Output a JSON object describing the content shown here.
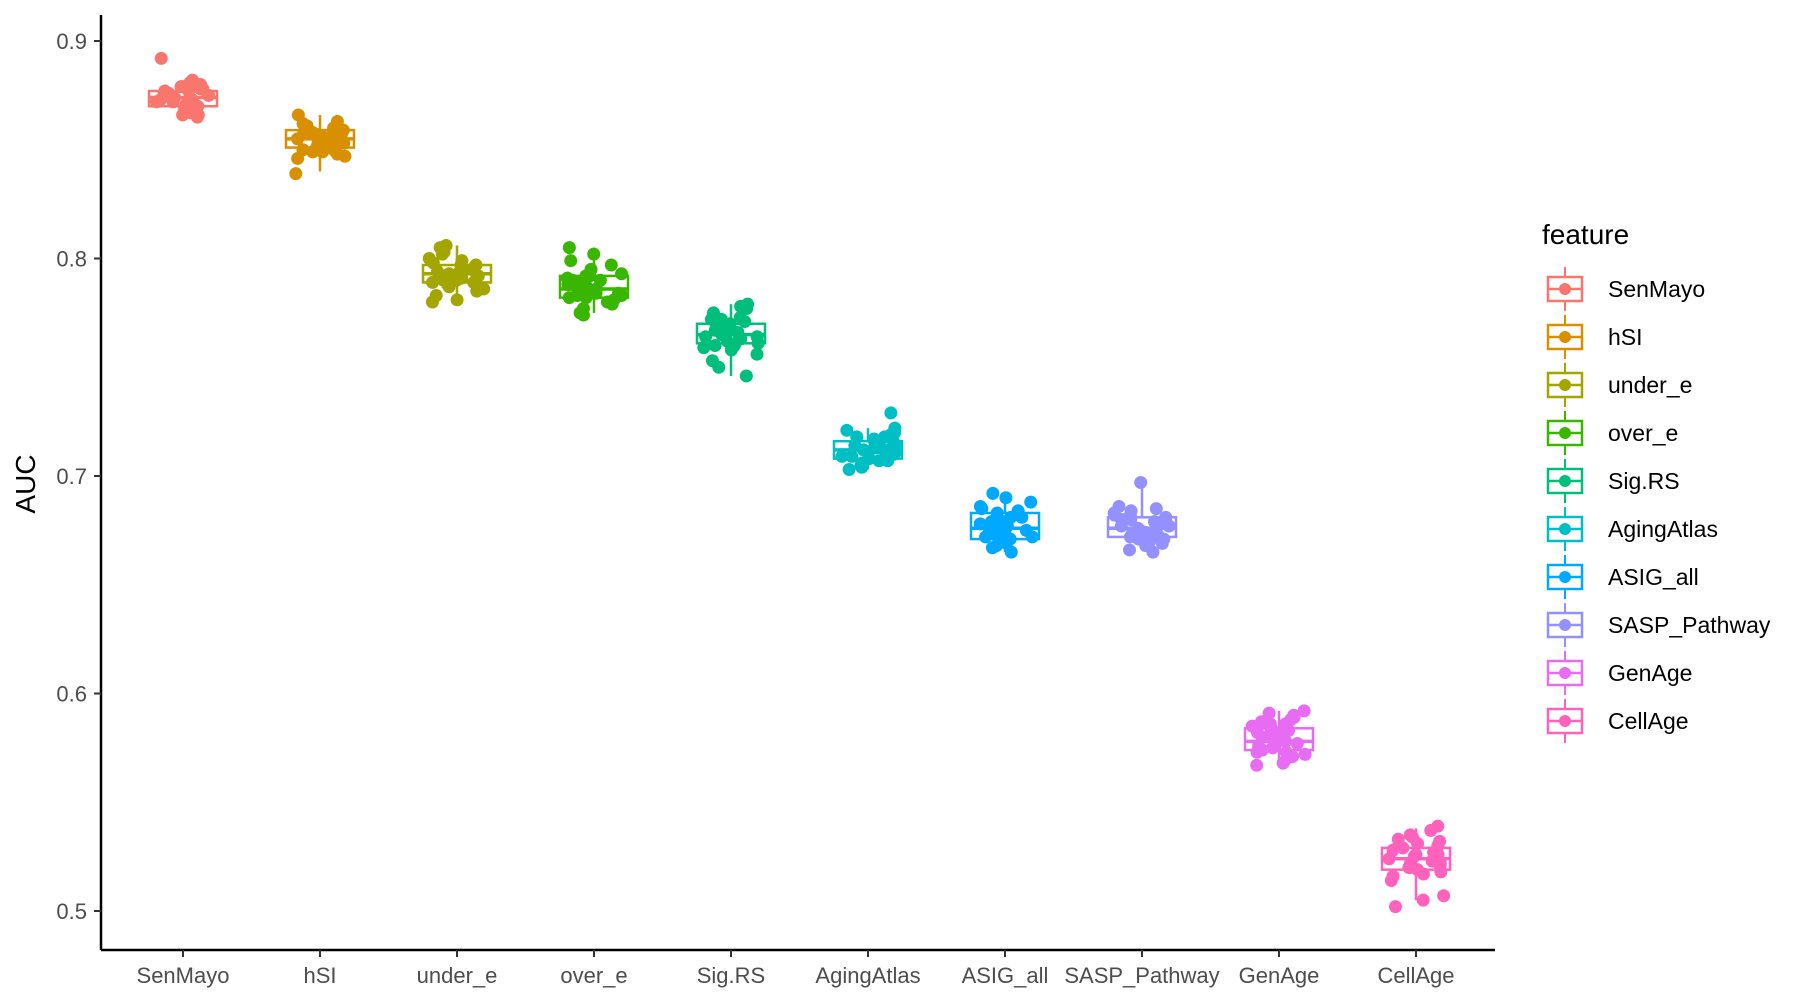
{
  "chart_data": {
    "type": "boxplot",
    "title": "",
    "xlabel": "",
    "ylabel": "AUC",
    "ylim": [
      0.485,
      0.912
    ],
    "yticks": [
      0.5,
      0.6,
      0.7,
      0.8,
      0.9
    ],
    "ytick_labels": [
      "0.5",
      "0.6",
      "0.7",
      "0.8",
      "0.9"
    ],
    "grid": false,
    "legend": {
      "title": "feature",
      "position": "right"
    },
    "categories": [
      "SenMayo",
      "hSI",
      "under_e",
      "over_e",
      "Sig.RS",
      "AgingAtlas",
      "ASIG_all",
      "SASP_Pathway",
      "GenAge",
      "CellAge"
    ],
    "series": [
      {
        "name": "SenMayo",
        "color": "#F8766D",
        "box": {
          "whisker_low": 0.866,
          "q1": 0.87,
          "median": 0.874,
          "q3": 0.877,
          "whisker_high": 0.882
        },
        "points": [
          0.892,
          0.882,
          0.881,
          0.88,
          0.879,
          0.878,
          0.877,
          0.876,
          0.876,
          0.875,
          0.874,
          0.874,
          0.873,
          0.872,
          0.871,
          0.87,
          0.869,
          0.868,
          0.867,
          0.866,
          0.866,
          0.865,
          0.878,
          0.875,
          0.873,
          0.871,
          0.869,
          0.877,
          0.872,
          0.87
        ]
      },
      {
        "name": "hSI",
        "color": "#D89000",
        "box": {
          "whisker_low": 0.84,
          "q1": 0.851,
          "median": 0.855,
          "q3": 0.859,
          "whisker_high": 0.866
        },
        "points": [
          0.866,
          0.863,
          0.862,
          0.861,
          0.86,
          0.859,
          0.858,
          0.857,
          0.856,
          0.855,
          0.855,
          0.854,
          0.853,
          0.852,
          0.851,
          0.85,
          0.849,
          0.848,
          0.847,
          0.846,
          0.839,
          0.858,
          0.856,
          0.854,
          0.852,
          0.85,
          0.857,
          0.853,
          0.851,
          0.849
        ]
      },
      {
        "name": "under_e",
        "color": "#A3A500",
        "box": {
          "whisker_low": 0.78,
          "q1": 0.789,
          "median": 0.793,
          "q3": 0.797,
          "whisker_high": 0.806
        },
        "points": [
          0.806,
          0.805,
          0.803,
          0.802,
          0.8,
          0.799,
          0.798,
          0.797,
          0.796,
          0.795,
          0.794,
          0.793,
          0.792,
          0.791,
          0.79,
          0.789,
          0.788,
          0.787,
          0.786,
          0.785,
          0.783,
          0.781,
          0.78,
          0.797,
          0.794,
          0.791,
          0.789,
          0.795,
          0.792,
          0.79
        ]
      },
      {
        "name": "over_e",
        "color": "#39B600",
        "box": {
          "whisker_low": 0.775,
          "q1": 0.782,
          "median": 0.786,
          "q3": 0.792,
          "whisker_high": 0.805
        },
        "points": [
          0.805,
          0.802,
          0.799,
          0.797,
          0.795,
          0.793,
          0.792,
          0.791,
          0.79,
          0.789,
          0.788,
          0.787,
          0.786,
          0.785,
          0.784,
          0.783,
          0.782,
          0.781,
          0.78,
          0.779,
          0.777,
          0.775,
          0.774,
          0.79,
          0.787,
          0.784,
          0.782,
          0.792,
          0.785,
          0.783
        ]
      },
      {
        "name": "Sig.RS",
        "color": "#00BF7D",
        "box": {
          "whisker_low": 0.746,
          "q1": 0.761,
          "median": 0.765,
          "q3": 0.77,
          "whisker_high": 0.779
        },
        "points": [
          0.779,
          0.778,
          0.777,
          0.775,
          0.773,
          0.772,
          0.771,
          0.77,
          0.769,
          0.768,
          0.767,
          0.766,
          0.765,
          0.764,
          0.763,
          0.762,
          0.761,
          0.76,
          0.758,
          0.756,
          0.753,
          0.75,
          0.746,
          0.772,
          0.768,
          0.764,
          0.76,
          0.766,
          0.763,
          0.759
        ]
      },
      {
        "name": "AgingAtlas",
        "color": "#00BFC4",
        "box": {
          "whisker_low": 0.703,
          "q1": 0.708,
          "median": 0.712,
          "q3": 0.716,
          "whisker_high": 0.722
        },
        "points": [
          0.729,
          0.722,
          0.721,
          0.72,
          0.719,
          0.718,
          0.717,
          0.716,
          0.715,
          0.714,
          0.713,
          0.712,
          0.712,
          0.711,
          0.71,
          0.709,
          0.708,
          0.707,
          0.706,
          0.705,
          0.704,
          0.703,
          0.718,
          0.714,
          0.711,
          0.709,
          0.716,
          0.713,
          0.71,
          0.707
        ]
      },
      {
        "name": "ASIG_all",
        "color": "#00A9FF",
        "box": {
          "whisker_low": 0.665,
          "q1": 0.671,
          "median": 0.676,
          "q3": 0.683,
          "whisker_high": 0.692
        },
        "points": [
          0.692,
          0.69,
          0.688,
          0.686,
          0.685,
          0.684,
          0.683,
          0.682,
          0.681,
          0.68,
          0.679,
          0.678,
          0.677,
          0.676,
          0.675,
          0.674,
          0.673,
          0.672,
          0.671,
          0.67,
          0.669,
          0.668,
          0.667,
          0.665,
          0.681,
          0.678,
          0.675,
          0.672,
          0.679,
          0.674
        ]
      },
      {
        "name": "SASP_Pathway",
        "color": "#9590FF",
        "box": {
          "whisker_low": 0.666,
          "q1": 0.672,
          "median": 0.676,
          "q3": 0.681,
          "whisker_high": 0.695
        },
        "points": [
          0.697,
          0.686,
          0.685,
          0.684,
          0.683,
          0.682,
          0.681,
          0.68,
          0.679,
          0.678,
          0.677,
          0.676,
          0.676,
          0.675,
          0.674,
          0.673,
          0.672,
          0.671,
          0.67,
          0.669,
          0.668,
          0.666,
          0.665,
          0.68,
          0.677,
          0.674,
          0.671,
          0.682,
          0.678,
          0.673
        ]
      },
      {
        "name": "GenAge",
        "color": "#E76BF3",
        "box": {
          "whisker_low": 0.567,
          "q1": 0.574,
          "median": 0.578,
          "q3": 0.584,
          "whisker_high": 0.592
        },
        "points": [
          0.592,
          0.591,
          0.59,
          0.589,
          0.588,
          0.587,
          0.586,
          0.585,
          0.584,
          0.583,
          0.582,
          0.581,
          0.58,
          0.579,
          0.578,
          0.577,
          0.576,
          0.575,
          0.574,
          0.573,
          0.572,
          0.571,
          0.57,
          0.568,
          0.567,
          0.586,
          0.582,
          0.579,
          0.576,
          0.573
        ]
      },
      {
        "name": "CellAge",
        "color": "#FF62BC",
        "box": {
          "whisker_low": 0.505,
          "q1": 0.519,
          "median": 0.524,
          "q3": 0.529,
          "whisker_high": 0.538
        },
        "points": [
          0.539,
          0.537,
          0.535,
          0.534,
          0.533,
          0.532,
          0.531,
          0.53,
          0.529,
          0.528,
          0.527,
          0.526,
          0.525,
          0.524,
          0.523,
          0.522,
          0.521,
          0.52,
          0.519,
          0.518,
          0.516,
          0.514,
          0.507,
          0.505,
          0.502,
          0.53,
          0.526,
          0.522,
          0.52,
          0.517
        ]
      }
    ]
  }
}
